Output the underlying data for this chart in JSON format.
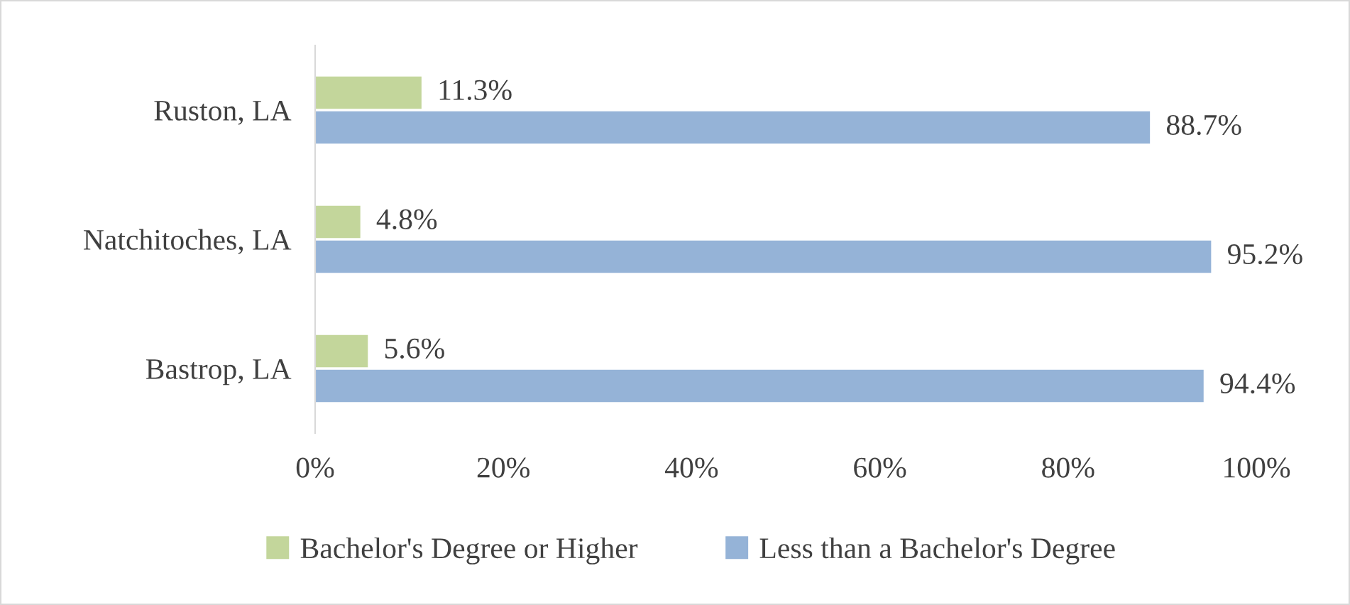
{
  "chart_data": {
    "type": "bar",
    "orientation": "horizontal",
    "categories": [
      "Ruston, LA",
      "Natchitoches, LA",
      "Bastrop, LA"
    ],
    "series": [
      {
        "name": "Bachelor's Degree or Higher",
        "color": "#c3d69b",
        "values": [
          11.3,
          4.8,
          5.6
        ],
        "value_labels": [
          "11.3%",
          "4.8%",
          "5.6%"
        ]
      },
      {
        "name": "Less than a Bachelor's Degree",
        "color": "#95b3d7",
        "values": [
          88.7,
          95.2,
          94.4
        ],
        "value_labels": [
          "88.7%",
          "95.2%",
          "94.4%"
        ]
      }
    ],
    "xlim": [
      0,
      100
    ],
    "xticks": [
      {
        "value": 0,
        "label": "0%"
      },
      {
        "value": 20,
        "label": "20%"
      },
      {
        "value": 40,
        "label": "40%"
      },
      {
        "value": 60,
        "label": "60%"
      },
      {
        "value": 80,
        "label": "80%"
      },
      {
        "value": 100,
        "label": "100%"
      }
    ],
    "grid": false,
    "legend": "bottom"
  }
}
